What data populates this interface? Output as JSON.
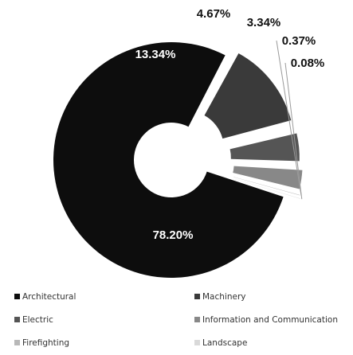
{
  "chart_data": {
    "type": "pie",
    "variant": "donut",
    "title": "",
    "categories": [
      "Architectural",
      "Machinery",
      "Electric",
      "Information and Communication",
      "Firefighting",
      "Landscape"
    ],
    "values": [
      78.2,
      13.34,
      4.67,
      3.34,
      0.37,
      0.08
    ],
    "value_labels": [
      "78.20%",
      "13.34%",
      "4.67%",
      "3.34%",
      "0.37%",
      "0.08%"
    ],
    "exploded": [
      "Machinery",
      "Electric",
      "Information and Communication",
      "Firefighting",
      "Landscape"
    ],
    "colors": [
      "#0d0d0d",
      "#3a3a3a",
      "#555555",
      "#888888",
      "#b8b8b8",
      "#d9d9d9"
    ],
    "legend": {
      "placement": "bottom",
      "columns": 2,
      "items": [
        {
          "label": "Architectural",
          "color": "#0d0d0d"
        },
        {
          "label": "Machinery",
          "color": "#3a3a3a"
        },
        {
          "label": "Electric",
          "color": "#555555"
        },
        {
          "label": "Information and Communication",
          "color": "#888888"
        },
        {
          "label": "Firefighting",
          "color": "#b8b8b8"
        },
        {
          "label": "Landscape",
          "color": "#d9d9d9"
        }
      ]
    }
  }
}
